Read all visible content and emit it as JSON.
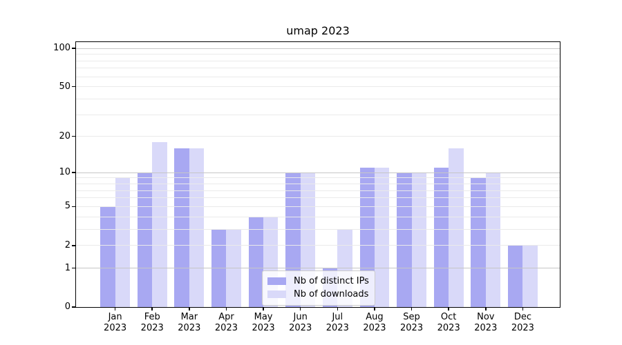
{
  "title": "umap 2023",
  "chart_data": {
    "type": "bar",
    "title": "umap 2023",
    "months": [
      "Jan",
      "Feb",
      "Mar",
      "Apr",
      "May",
      "Jun",
      "Jul",
      "Aug",
      "Sep",
      "Oct",
      "Nov",
      "Dec"
    ],
    "year": "2023",
    "series": [
      {
        "name": "Nb of distinct IPs",
        "color": "#a8a8f2",
        "values": [
          5,
          10,
          16,
          3,
          4,
          10,
          1,
          11,
          10,
          11,
          9,
          2
        ]
      },
      {
        "name": "Nb of downloads",
        "color": "#d9d9f9",
        "values": [
          9,
          18,
          16,
          3,
          4,
          10,
          3,
          11,
          10,
          16,
          10,
          2
        ]
      }
    ],
    "yscale": "log1p",
    "yticks": [
      0,
      1,
      2,
      5,
      10,
      20,
      50,
      100
    ],
    "ylim": [
      0,
      112
    ],
    "grid_minor_values": [
      2,
      3,
      4,
      5,
      6,
      7,
      8,
      9,
      20,
      30,
      40,
      50,
      60,
      70,
      80,
      90
    ],
    "grid_major_values": [
      1,
      10,
      100
    ],
    "grid_minor_color": "#eaeaea",
    "grid_major_color": "#c6c6c6",
    "legend_position": "lower center",
    "legend_background": "rgba(255,255,255,0.8)",
    "axis_color": "#000000",
    "background_color": "#ffffff"
  }
}
